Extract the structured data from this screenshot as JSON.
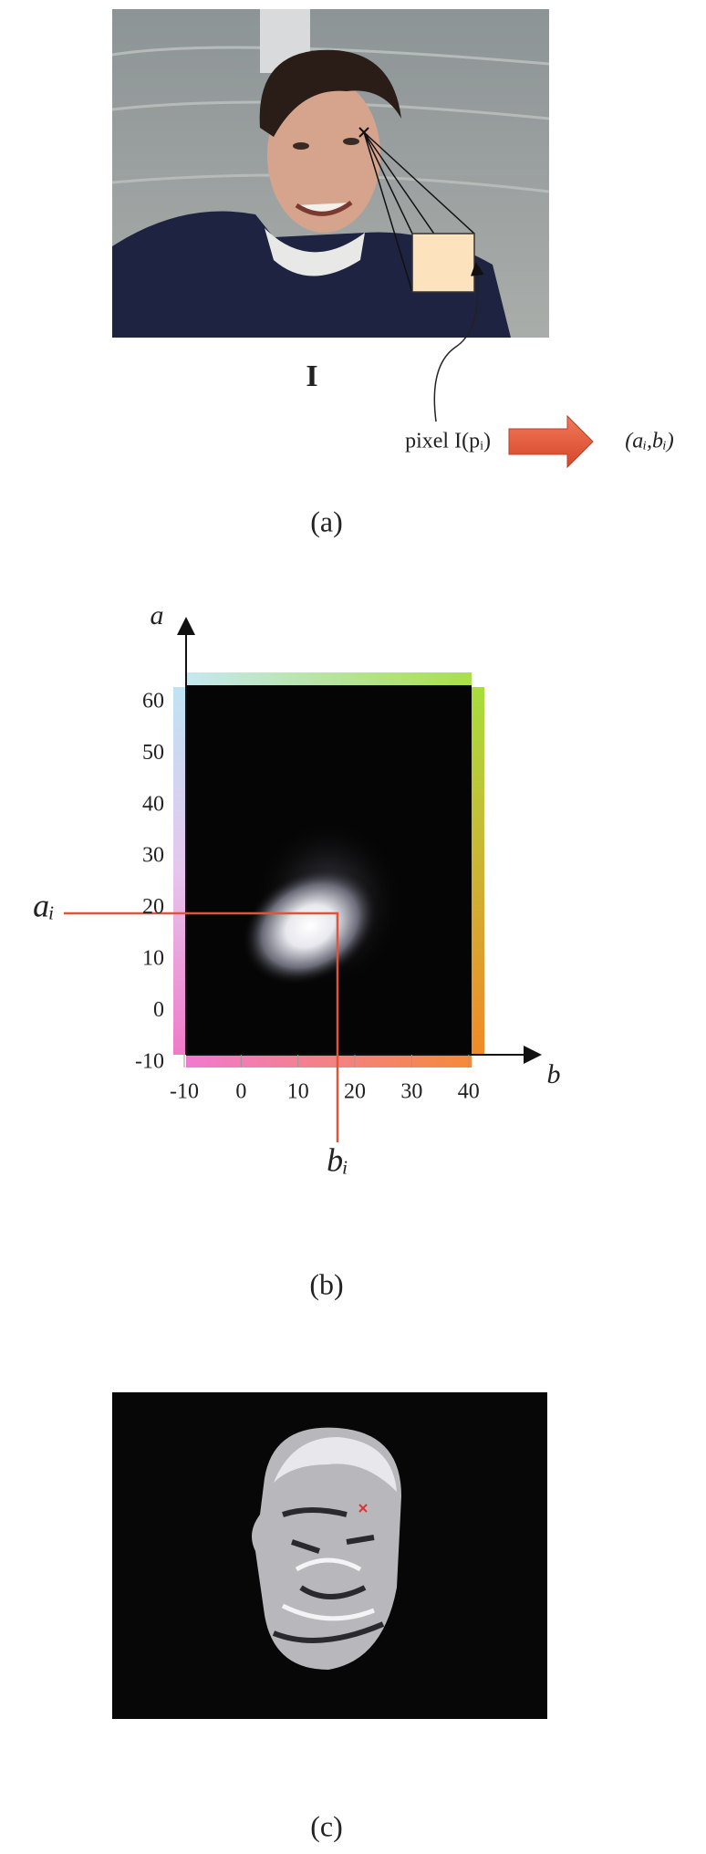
{
  "panel_a": {
    "image_label": "I",
    "pixel_label": "pixel I(pᵢ)",
    "output_label": "(aᵢ,bᵢ)",
    "caption": "(a)"
  },
  "panel_b": {
    "y_axis_label": "a",
    "x_axis_label": "b",
    "a_marker_label": "aᵢ",
    "b_marker_label": "bᵢ",
    "ylim": [
      -10,
      63
    ],
    "yticks": [
      -10,
      0,
      10,
      20,
      30,
      40,
      50,
      60
    ],
    "xlim": [
      -10,
      41
    ],
    "xticks": [
      -10,
      0,
      10,
      20,
      30,
      40
    ],
    "caption": "(b)"
  },
  "panel_c": {
    "caption": "(c)"
  }
}
